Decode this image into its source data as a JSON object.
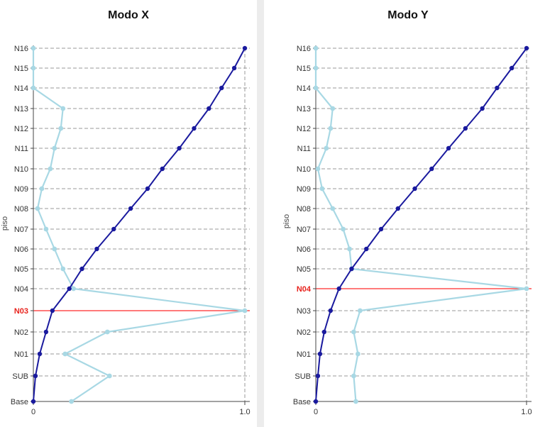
{
  "floors": [
    "Base",
    "SUB",
    "N01",
    "N02",
    "N03",
    "N04",
    "N05",
    "N06",
    "N07",
    "N08",
    "N09",
    "N10",
    "N11",
    "N12",
    "N13",
    "N14",
    "N15",
    "N16"
  ],
  "chart_data": [
    {
      "type": "line",
      "title": "Modo X",
      "ylabel": "piso",
      "xlim": [
        0,
        1.0
      ],
      "xticks": [
        "0",
        "1.0"
      ],
      "highlight_floor": "N03",
      "series": [
        {
          "color": "#1a1a9e",
          "y": [
            "Base",
            "SUB",
            "N01",
            "N02",
            "N03",
            "N04",
            "N05",
            "N06",
            "N07",
            "N08",
            "N09",
            "N10",
            "N11",
            "N12",
            "N13",
            "N14",
            "N15",
            "N16"
          ],
          "x": [
            0.0,
            0.01,
            0.03,
            0.06,
            0.09,
            0.17,
            0.23,
            0.3,
            0.38,
            0.46,
            0.54,
            0.61,
            0.69,
            0.76,
            0.83,
            0.89,
            0.95,
            1.0
          ]
        },
        {
          "color": "#a8d8e4",
          "y": [
            "Base",
            "SUB",
            "N01",
            "N02",
            "N03",
            "N04",
            "N05",
            "N06",
            "N07",
            "N08",
            "N09",
            "N10",
            "N11",
            "N12",
            "N13",
            "N14",
            "N15",
            "N16"
          ],
          "x": [
            0.18,
            0.36,
            0.15,
            0.35,
            1.0,
            0.19,
            0.14,
            0.1,
            0.06,
            0.02,
            0.04,
            0.08,
            0.1,
            0.13,
            0.14,
            0.0,
            0.0,
            0.0
          ]
        }
      ]
    },
    {
      "type": "line",
      "title": "Modo Y",
      "ylabel": "piso",
      "xlim": [
        0,
        1.0
      ],
      "xticks": [
        "0",
        "1.0"
      ],
      "highlight_floor": "N04",
      "series": [
        {
          "color": "#1a1a9e",
          "y": [
            "Base",
            "SUB",
            "N01",
            "N02",
            "N03",
            "N04",
            "N05",
            "N06",
            "N07",
            "N08",
            "N09",
            "N10",
            "N11",
            "N12",
            "N13",
            "N14",
            "N15",
            "N16"
          ],
          "x": [
            0.0,
            0.01,
            0.02,
            0.04,
            0.07,
            0.11,
            0.17,
            0.24,
            0.31,
            0.39,
            0.47,
            0.55,
            0.63,
            0.71,
            0.79,
            0.86,
            0.93,
            1.0
          ]
        },
        {
          "color": "#a8d8e4",
          "y": [
            "Base",
            "SUB",
            "N01",
            "N02",
            "N03",
            "N04",
            "N05",
            "N06",
            "N07",
            "N08",
            "N09",
            "N10",
            "N11",
            "N12",
            "N13",
            "N14",
            "N15",
            "N16"
          ],
          "x": [
            0.19,
            0.18,
            0.2,
            0.18,
            0.21,
            1.0,
            0.17,
            0.16,
            0.13,
            0.08,
            0.03,
            0.01,
            0.05,
            0.07,
            0.08,
            0.0,
            0.0,
            0.0
          ]
        }
      ]
    }
  ]
}
